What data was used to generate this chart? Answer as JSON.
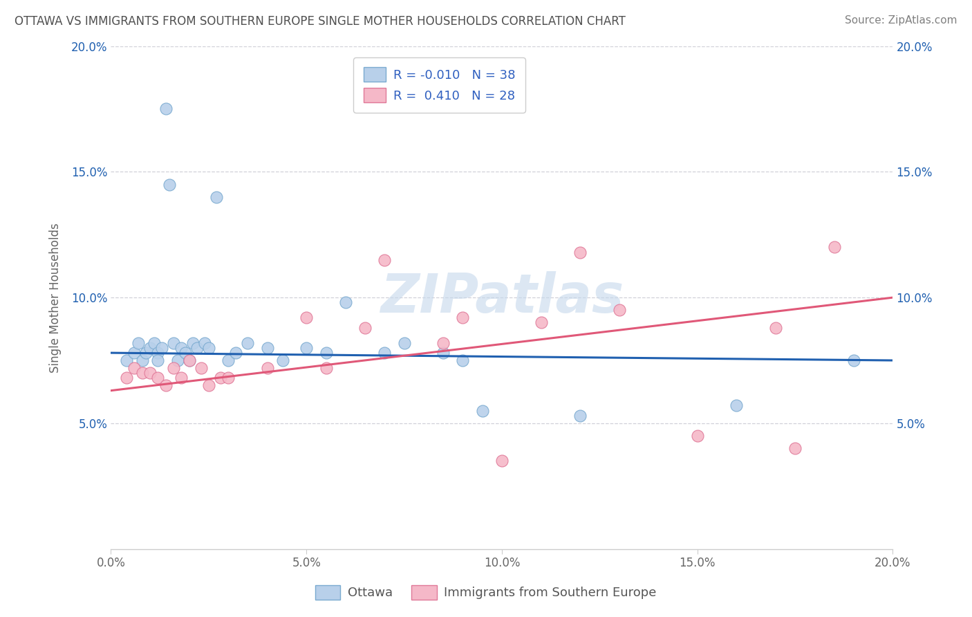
{
  "title": "OTTAWA VS IMMIGRANTS FROM SOUTHERN EUROPE SINGLE MOTHER HOUSEHOLDS CORRELATION CHART",
  "source": "Source: ZipAtlas.com",
  "ylabel": "Single Mother Households",
  "xlabel": "",
  "xlim": [
    0.0,
    0.2
  ],
  "ylim": [
    0.0,
    0.2
  ],
  "yticks": [
    0.05,
    0.1,
    0.15,
    0.2
  ],
  "ytick_labels": [
    "5.0%",
    "10.0%",
    "15.0%",
    "20.0%"
  ],
  "xticks": [
    0.0,
    0.05,
    0.1,
    0.15,
    0.2
  ],
  "xtick_labels": [
    "0.0%",
    "5.0%",
    "10.0%",
    "15.0%",
    "20.0%"
  ],
  "legend_labels": [
    "Ottawa",
    "Immigrants from Southern Europe"
  ],
  "series1_color": "#b8d0ea",
  "series2_color": "#f5b8c8",
  "series1_edge": "#7aaad0",
  "series2_edge": "#e07898",
  "line1_color": "#2060b0",
  "line2_color": "#e05878",
  "r1": -0.01,
  "n1": 38,
  "r2": 0.41,
  "n2": 28,
  "legend_r_color": "#3060c0",
  "title_color": "#505050",
  "source_color": "#808080",
  "background_color": "#ffffff",
  "grid_color": "#d0d0d8",
  "watermark_color": "#c5d8ec",
  "series1_x": [
    0.004,
    0.006,
    0.007,
    0.008,
    0.009,
    0.01,
    0.011,
    0.012,
    0.012,
    0.013,
    0.014,
    0.015,
    0.016,
    0.017,
    0.018,
    0.019,
    0.02,
    0.021,
    0.022,
    0.024,
    0.025,
    0.027,
    0.03,
    0.032,
    0.035,
    0.04,
    0.044,
    0.05,
    0.055,
    0.06,
    0.07,
    0.075,
    0.085,
    0.09,
    0.095,
    0.12,
    0.16,
    0.19
  ],
  "series1_y": [
    0.075,
    0.078,
    0.082,
    0.075,
    0.078,
    0.08,
    0.082,
    0.078,
    0.075,
    0.08,
    0.175,
    0.145,
    0.082,
    0.075,
    0.08,
    0.078,
    0.075,
    0.082,
    0.08,
    0.082,
    0.08,
    0.14,
    0.075,
    0.078,
    0.082,
    0.08,
    0.075,
    0.08,
    0.078,
    0.098,
    0.078,
    0.082,
    0.078,
    0.075,
    0.055,
    0.053,
    0.057,
    0.075
  ],
  "series2_x": [
    0.004,
    0.006,
    0.008,
    0.01,
    0.012,
    0.014,
    0.016,
    0.018,
    0.02,
    0.023,
    0.025,
    0.028,
    0.03,
    0.04,
    0.05,
    0.055,
    0.065,
    0.07,
    0.085,
    0.09,
    0.1,
    0.11,
    0.12,
    0.13,
    0.15,
    0.17,
    0.175,
    0.185
  ],
  "series2_y": [
    0.068,
    0.072,
    0.07,
    0.07,
    0.068,
    0.065,
    0.072,
    0.068,
    0.075,
    0.072,
    0.065,
    0.068,
    0.068,
    0.072,
    0.092,
    0.072,
    0.088,
    0.115,
    0.082,
    0.092,
    0.035,
    0.09,
    0.118,
    0.095,
    0.045,
    0.088,
    0.04,
    0.12
  ]
}
